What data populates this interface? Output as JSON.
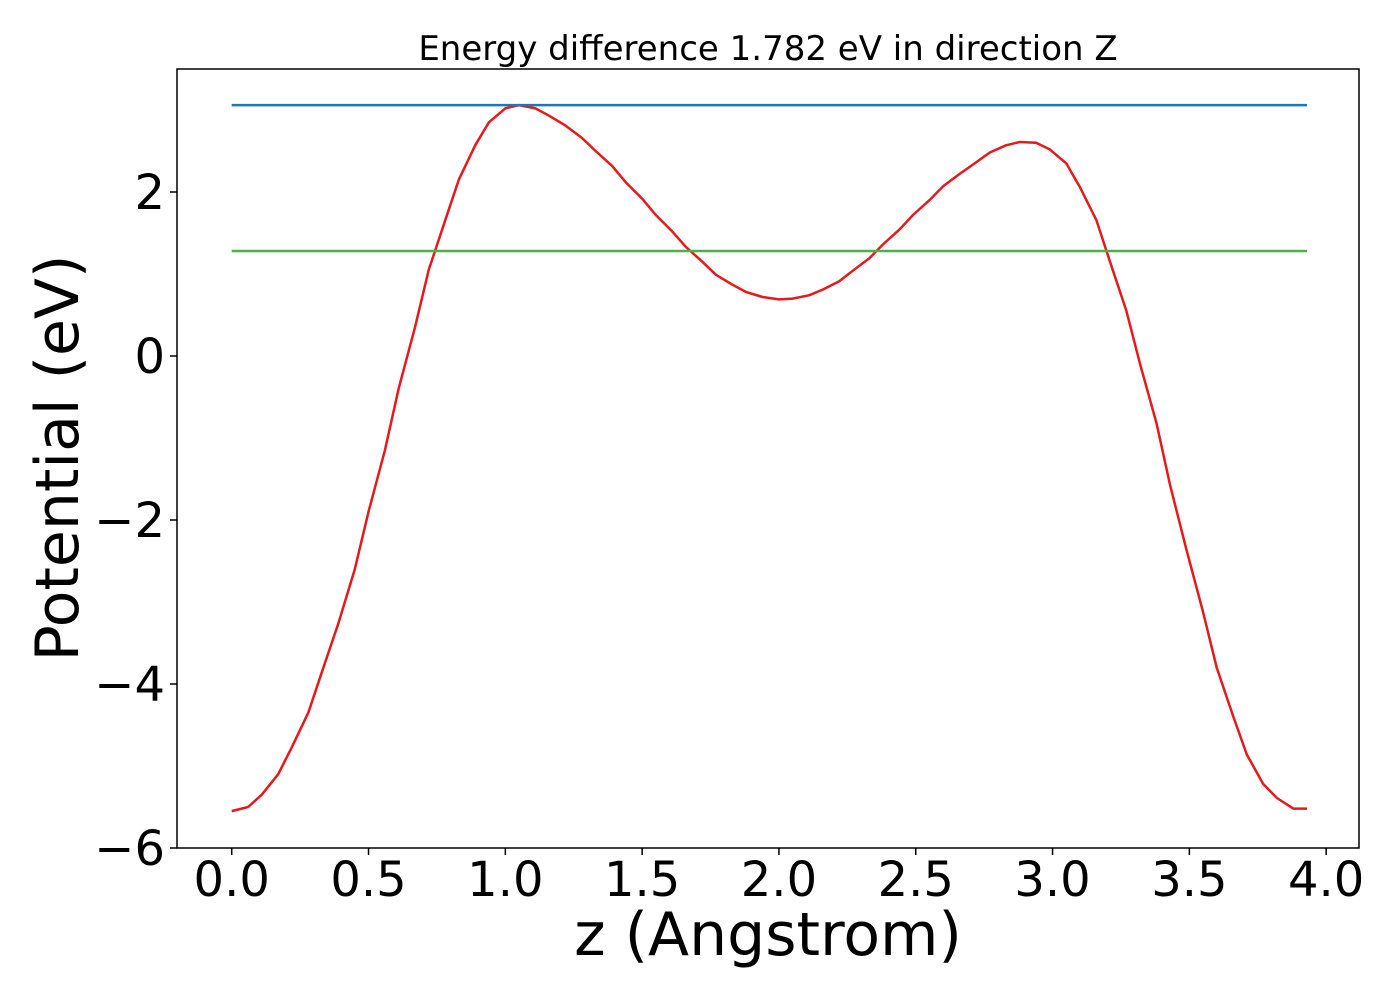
{
  "chart_data": {
    "type": "line",
    "title": "Energy difference 1.782 eV in direction Z",
    "xlabel": "z (Angstrom)",
    "ylabel": "Potential (eV)",
    "xlim": [
      -0.2,
      4.12
    ],
    "ylim": [
      -6.0,
      3.5
    ],
    "x_ticks": [
      0.0,
      0.5,
      1.0,
      1.5,
      2.0,
      2.5,
      3.0,
      3.5,
      4.0
    ],
    "x_tick_labels": [
      "0.0",
      "0.5",
      "1.0",
      "1.5",
      "2.0",
      "2.5",
      "3.0",
      "3.5",
      "4.0"
    ],
    "y_ticks": [
      -6,
      -4,
      -2,
      0,
      2
    ],
    "y_tick_labels": [
      "−6",
      "−4",
      "−2",
      "0",
      "2"
    ],
    "grid": false,
    "legend": "none",
    "series": [
      {
        "color": "#e41a1c",
        "x": [
          0.0,
          0.06,
          0.11,
          0.17,
          0.22,
          0.28,
          0.33,
          0.39,
          0.45,
          0.5,
          0.56,
          0.61,
          0.67,
          0.72,
          0.78,
          0.83,
          0.89,
          0.94,
          1.0,
          1.05,
          1.11,
          1.16,
          1.22,
          1.28,
          1.33,
          1.39,
          1.44,
          1.5,
          1.55,
          1.61,
          1.66,
          1.72,
          1.77,
          1.83,
          1.88,
          1.94,
          2.0,
          2.05,
          2.11,
          2.16,
          2.22,
          2.27,
          2.33,
          2.38,
          2.44,
          2.49,
          2.55,
          2.6,
          2.66,
          2.72,
          2.77,
          2.83,
          2.88,
          2.94,
          2.99,
          3.05,
          3.1,
          3.16,
          3.21,
          3.27,
          3.32,
          3.38,
          3.43,
          3.49,
          3.55,
          3.6,
          3.66,
          3.71,
          3.77,
          3.82,
          3.88,
          3.93
        ],
        "values": [
          -5.55,
          -5.5,
          -5.35,
          -5.1,
          -4.77,
          -4.35,
          -3.85,
          -3.26,
          -2.6,
          -1.9,
          -1.15,
          -0.4,
          0.35,
          1.05,
          1.65,
          2.15,
          2.57,
          2.85,
          3.02,
          3.06,
          3.02,
          2.93,
          2.81,
          2.66,
          2.5,
          2.32,
          2.12,
          1.92,
          1.72,
          1.52,
          1.33,
          1.15,
          0.99,
          0.87,
          0.78,
          0.72,
          0.69,
          0.7,
          0.74,
          0.81,
          0.91,
          1.04,
          1.19,
          1.36,
          1.54,
          1.72,
          1.9,
          2.07,
          2.22,
          2.36,
          2.48,
          2.57,
          2.61,
          2.6,
          2.52,
          2.35,
          2.06,
          1.66,
          1.15,
          0.55,
          -0.1,
          -0.82,
          -1.58,
          -2.37,
          -3.12,
          -3.8,
          -4.39,
          -4.86,
          -5.22,
          -5.39,
          -5.52,
          -5.52
        ]
      },
      {
        "color": "#1f77b4",
        "x": [
          0.0,
          3.93
        ],
        "values": [
          3.06,
          3.06
        ]
      },
      {
        "color": "#4daf4a",
        "x": [
          0.0,
          3.93
        ],
        "values": [
          1.28,
          1.28
        ]
      }
    ]
  }
}
